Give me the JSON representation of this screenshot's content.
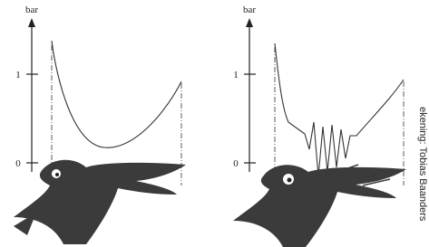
{
  "panels": [
    {
      "axis_label": "bar",
      "ticks": [
        "1",
        "0"
      ]
    },
    {
      "axis_label": "bar",
      "ticks": [
        "1",
        "0"
      ]
    }
  ],
  "credit": "ekening: Tobias Baanders"
}
